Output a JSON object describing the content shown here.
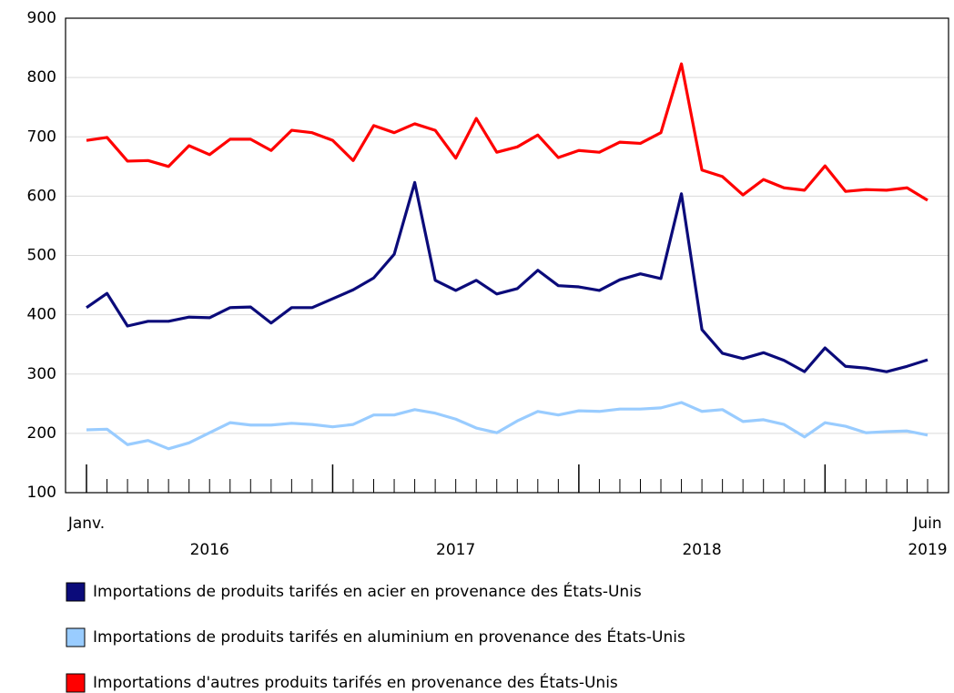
{
  "chart_data": {
    "type": "line",
    "categories": [
      "Janv.",
      null,
      null,
      null,
      null,
      null,
      null,
      null,
      null,
      null,
      null,
      null,
      null,
      null,
      null,
      null,
      null,
      null,
      null,
      null,
      null,
      null,
      null,
      null,
      null,
      null,
      null,
      null,
      null,
      null,
      null,
      null,
      null,
      null,
      null,
      null,
      null,
      null,
      null,
      null,
      null,
      "Juin"
    ],
    "year_labels": [
      "2016",
      "2017",
      "2018",
      "2019"
    ],
    "series": [
      {
        "name": "Importations de produits tarifés en acier en provenance des États-Unis",
        "color": "#0b0b7a",
        "values": [
          412,
          436,
          381,
          389,
          389,
          396,
          395,
          412,
          413,
          386,
          412,
          412,
          427,
          442,
          462,
          502,
          623,
          458,
          441,
          458,
          435,
          444,
          475,
          449,
          447,
          441,
          459,
          469,
          461,
          604,
          375,
          335,
          326,
          336,
          323,
          304,
          344,
          313,
          310,
          304,
          313,
          324
        ]
      },
      {
        "name": "Importations de produits tarifés en aluminium en provenance des États-Unis",
        "color": "#99ccff",
        "values": [
          206,
          207,
          181,
          188,
          174,
          184,
          201,
          218,
          214,
          214,
          217,
          215,
          211,
          215,
          231,
          231,
          240,
          234,
          224,
          209,
          201,
          221,
          237,
          231,
          238,
          237,
          241,
          241,
          243,
          252,
          237,
          240,
          220,
          223,
          215,
          194,
          218,
          212,
          201,
          203,
          204,
          197
        ]
      },
      {
        "name": "Importations d'autres produits tarifés en provenance des États-Unis",
        "color": "#ff0000",
        "values": [
          694,
          699,
          659,
          660,
          650,
          685,
          670,
          696,
          696,
          677,
          711,
          707,
          694,
          660,
          719,
          707,
          722,
          711,
          664,
          731,
          674,
          683,
          703,
          665,
          677,
          674,
          691,
          689,
          707,
          823,
          644,
          633,
          602,
          628,
          614,
          610,
          651,
          608,
          611,
          610,
          614,
          593
        ]
      }
    ],
    "ylim": [
      100,
      900
    ],
    "yticks": [
      100,
      200,
      300,
      400,
      500,
      600,
      700,
      800,
      900
    ],
    "grid": true,
    "legend": "bottom"
  }
}
